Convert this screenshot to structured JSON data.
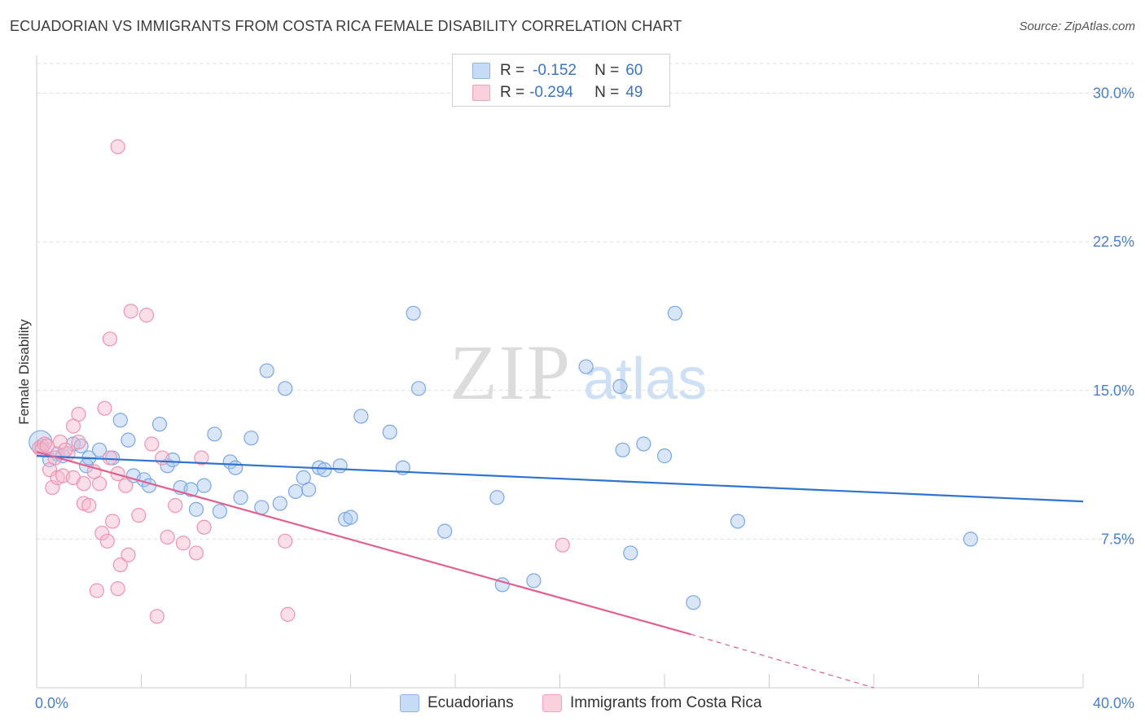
{
  "title": "ECUADORIAN VS IMMIGRANTS FROM COSTA RICA FEMALE DISABILITY CORRELATION CHART",
  "source": "Source: ZipAtlas.com",
  "watermark": {
    "zip": "ZIP",
    "atlas": "atlas"
  },
  "legend": {
    "rows": [
      {
        "r_label": "R =",
        "r_value": "-0.152",
        "n_label": "N =",
        "n_value": "60",
        "color": "#a9c8f0"
      },
      {
        "r_label": "R =",
        "r_value": "-0.294",
        "n_label": "N =",
        "n_value": "49",
        "color": "#f6b8cb"
      }
    ]
  },
  "bottom_legend": {
    "series1": {
      "label": "Ecuadorians",
      "color": "#a9c8f0"
    },
    "series2": {
      "label": "Immigrants from Costa Rica",
      "color": "#f6b8cb"
    }
  },
  "chart_data": {
    "type": "scatter",
    "title": "ECUADORIAN VS IMMIGRANTS FROM COSTA RICA FEMALE DISABILITY CORRELATION CHART",
    "xlabel": "",
    "ylabel": "Female Disability",
    "xlim": [
      0,
      40
    ],
    "ylim": [
      0,
      31.5
    ],
    "x_ticks": [
      "0.0%",
      "40.0%"
    ],
    "y_ticks": [
      {
        "value": 7.5,
        "label": "7.5%"
      },
      {
        "value": 15.0,
        "label": "15.0%"
      },
      {
        "value": 22.5,
        "label": "22.5%"
      },
      {
        "value": 30.0,
        "label": "30.0%"
      }
    ],
    "series": [
      {
        "name": "Ecuadorians",
        "color": "#7ba7e6",
        "line_color": "#2f74d0",
        "trend": {
          "x0": 0,
          "y0": 11.7,
          "x1": 40,
          "y1": 9.4
        },
        "points": [
          [
            0.2,
            12.2
          ],
          [
            0.5,
            11.5
          ],
          [
            0.8,
            11.8
          ],
          [
            1.0,
            11.7
          ],
          [
            1.4,
            12.3
          ],
          [
            1.7,
            12.2
          ],
          [
            1.9,
            11.2
          ],
          [
            2.0,
            11.6
          ],
          [
            2.4,
            12.0
          ],
          [
            2.9,
            11.6
          ],
          [
            3.2,
            13.5
          ],
          [
            3.5,
            12.5
          ],
          [
            3.7,
            10.7
          ],
          [
            4.1,
            10.5
          ],
          [
            4.3,
            10.2
          ],
          [
            4.7,
            13.3
          ],
          [
            5.0,
            11.2
          ],
          [
            5.2,
            11.5
          ],
          [
            5.5,
            10.1
          ],
          [
            5.9,
            10.0
          ],
          [
            6.1,
            9.0
          ],
          [
            6.4,
            10.2
          ],
          [
            6.8,
            12.8
          ],
          [
            7.0,
            8.9
          ],
          [
            7.4,
            11.4
          ],
          [
            7.6,
            11.1
          ],
          [
            7.8,
            9.6
          ],
          [
            8.2,
            12.6
          ],
          [
            8.6,
            9.1
          ],
          [
            8.8,
            16.0
          ],
          [
            9.3,
            9.3
          ],
          [
            9.5,
            15.1
          ],
          [
            9.9,
            9.9
          ],
          [
            10.2,
            10.6
          ],
          [
            10.4,
            10.0
          ],
          [
            10.8,
            11.1
          ],
          [
            11.0,
            11.0
          ],
          [
            11.6,
            11.2
          ],
          [
            11.8,
            8.5
          ],
          [
            12.0,
            8.6
          ],
          [
            12.4,
            13.7
          ],
          [
            13.5,
            12.9
          ],
          [
            14.0,
            11.1
          ],
          [
            14.4,
            18.9
          ],
          [
            14.6,
            15.1
          ],
          [
            15.6,
            7.9
          ],
          [
            17.6,
            9.6
          ],
          [
            17.8,
            5.2
          ],
          [
            19.0,
            5.4
          ],
          [
            21.0,
            16.2
          ],
          [
            22.3,
            15.2
          ],
          [
            22.4,
            12.0
          ],
          [
            22.7,
            6.8
          ],
          [
            23.2,
            12.3
          ],
          [
            24.0,
            11.7
          ],
          [
            24.4,
            18.9
          ],
          [
            25.1,
            4.3
          ],
          [
            26.8,
            8.4
          ],
          [
            35.7,
            7.5
          ],
          [
            0.15,
            12.4
          ]
        ]
      },
      {
        "name": "Immigrants from Costa Rica",
        "color": "#f093b0",
        "line_color": "#e0608f",
        "trend": {
          "x0": 0,
          "y0": 11.9,
          "x1": 25.0,
          "y1": 2.7
        },
        "trend_dashed": {
          "x0": 25.0,
          "y0": 2.7,
          "x1": 32.0,
          "y1": 0.0
        },
        "points": [
          [
            0.1,
            12.1
          ],
          [
            0.3,
            12.3
          ],
          [
            0.5,
            11.0
          ],
          [
            0.6,
            10.1
          ],
          [
            0.8,
            10.6
          ],
          [
            0.9,
            12.4
          ],
          [
            1.0,
            10.7
          ],
          [
            1.2,
            11.8
          ],
          [
            1.4,
            10.6
          ],
          [
            1.4,
            13.2
          ],
          [
            1.6,
            12.4
          ],
          [
            1.6,
            13.8
          ],
          [
            1.8,
            9.3
          ],
          [
            1.8,
            10.3
          ],
          [
            2.0,
            9.2
          ],
          [
            2.2,
            10.9
          ],
          [
            2.3,
            4.9
          ],
          [
            2.4,
            10.3
          ],
          [
            2.5,
            7.8
          ],
          [
            2.6,
            14.1
          ],
          [
            2.7,
            7.4
          ],
          [
            2.8,
            11.6
          ],
          [
            2.8,
            17.6
          ],
          [
            2.9,
            8.4
          ],
          [
            3.1,
            10.8
          ],
          [
            3.1,
            5.0
          ],
          [
            3.1,
            27.3
          ],
          [
            3.2,
            6.2
          ],
          [
            3.4,
            10.2
          ],
          [
            3.5,
            6.7
          ],
          [
            3.6,
            19.0
          ],
          [
            3.9,
            8.7
          ],
          [
            4.2,
            18.8
          ],
          [
            4.4,
            12.3
          ],
          [
            4.6,
            3.6
          ],
          [
            4.8,
            11.6
          ],
          [
            5.0,
            7.6
          ],
          [
            5.3,
            9.2
          ],
          [
            5.6,
            7.3
          ],
          [
            6.1,
            6.8
          ],
          [
            6.3,
            11.6
          ],
          [
            6.4,
            8.1
          ],
          [
            9.5,
            7.4
          ],
          [
            9.6,
            3.7
          ],
          [
            20.1,
            7.2
          ],
          [
            0.2,
            12.0
          ],
          [
            0.4,
            12.2
          ],
          [
            0.7,
            11.6
          ],
          [
            1.1,
            12.0
          ]
        ]
      }
    ]
  }
}
